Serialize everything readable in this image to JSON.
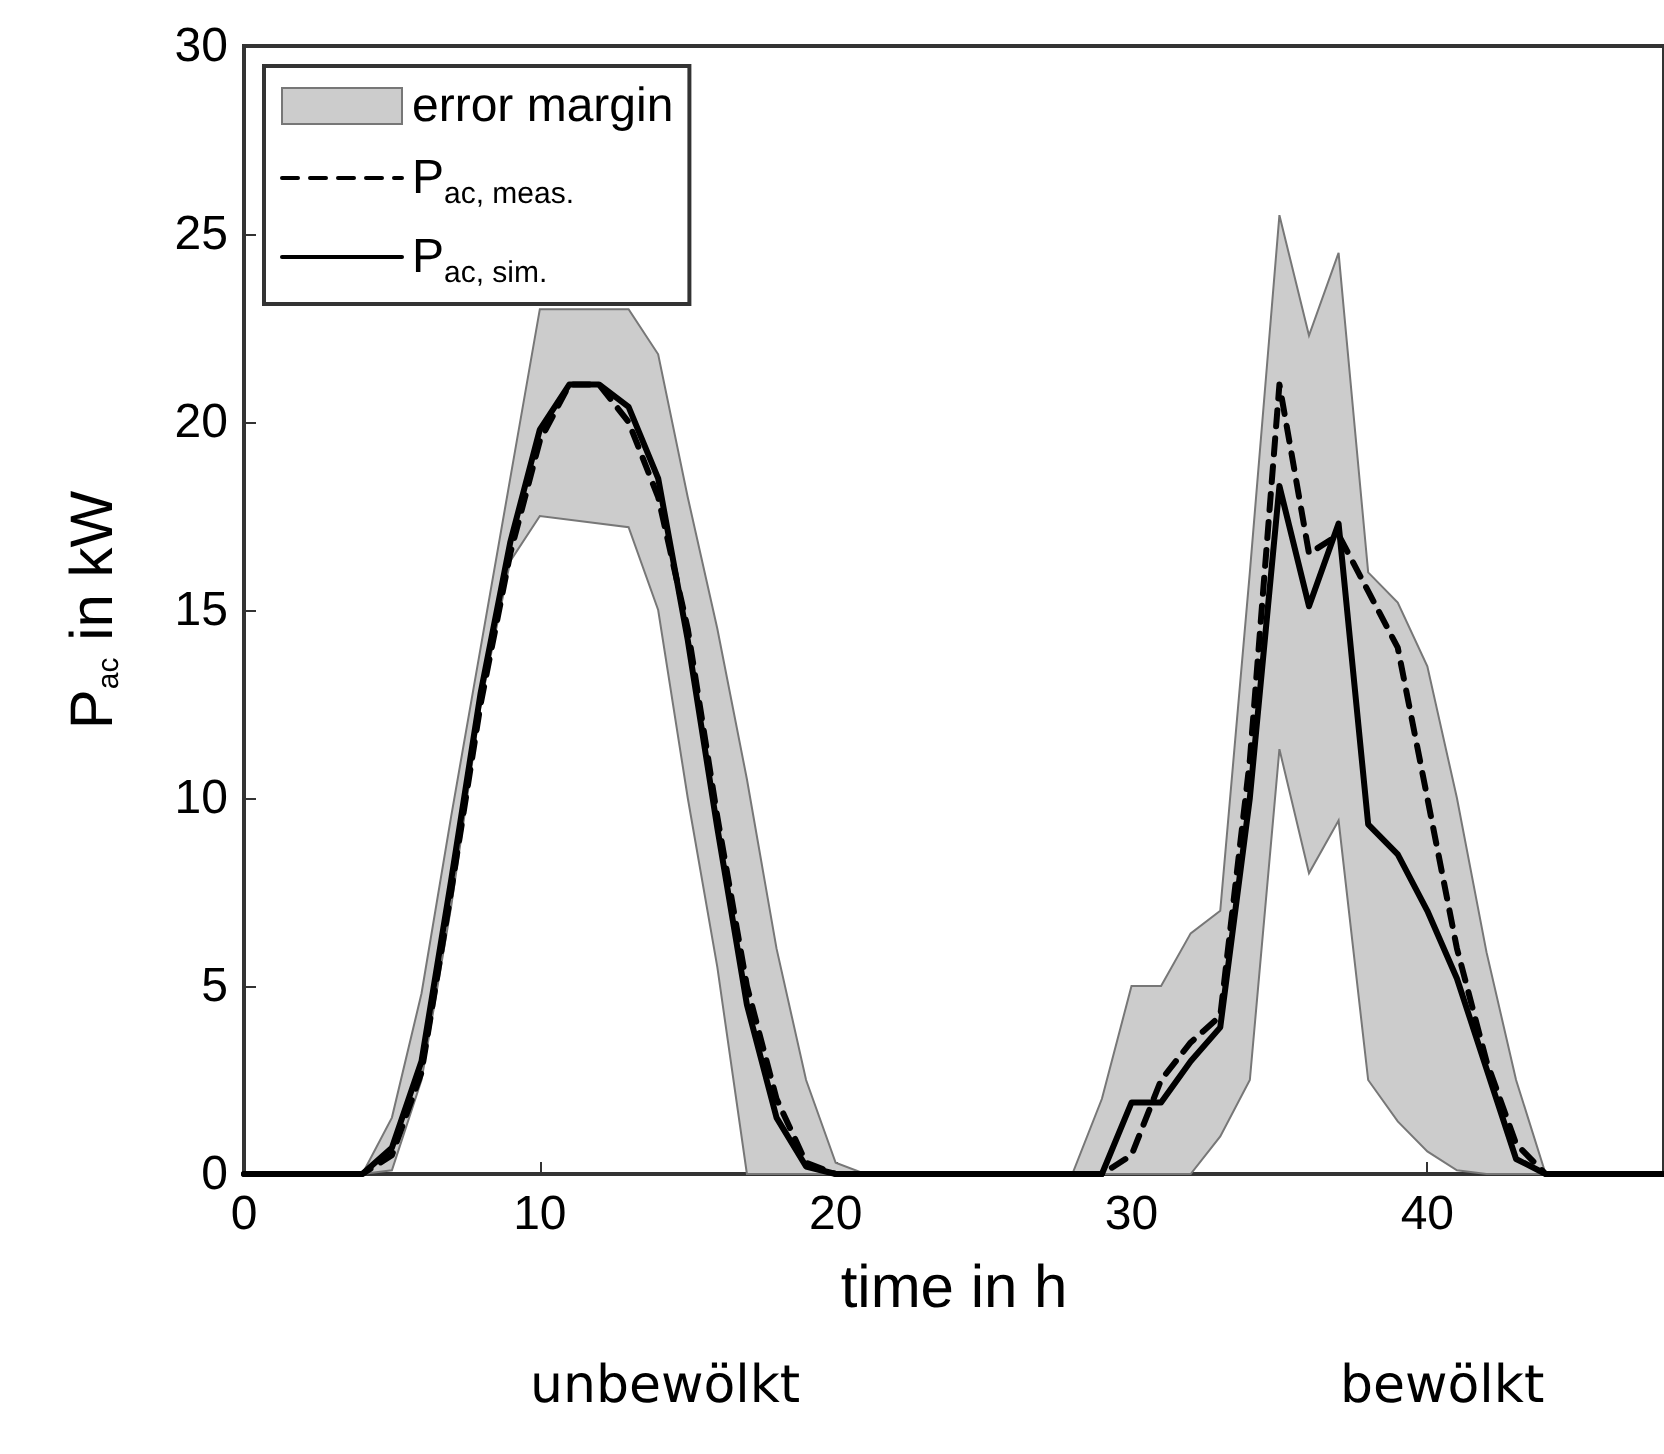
{
  "chart_data": {
    "type": "line",
    "xlabel": "time in h",
    "ylabel": "P$_{ac}$ in kW",
    "x": [
      0,
      1,
      2,
      3,
      4,
      5,
      6,
      7,
      8,
      9,
      10,
      11,
      12,
      13,
      14,
      15,
      16,
      17,
      18,
      19,
      20,
      21,
      22,
      23,
      24,
      25,
      26,
      27,
      28,
      29,
      30,
      31,
      32,
      33,
      34,
      35,
      36,
      37,
      38,
      39,
      40,
      41,
      42,
      43,
      44,
      45,
      46,
      47,
      48
    ],
    "series": [
      {
        "name": "error margin",
        "color": "#cccccc",
        "values": [
          null,
          null,
          null,
          null,
          null,
          null,
          null,
          null,
          null,
          null,
          null,
          null,
          null,
          null,
          null,
          null,
          null,
          null,
          null,
          null,
          null,
          null,
          null,
          null,
          null,
          null,
          null,
          null,
          null,
          null,
          null,
          null,
          null,
          null,
          null,
          null,
          null,
          null,
          null,
          null,
          null,
          null,
          null,
          null,
          null,
          null,
          null,
          null,
          null
        ],
        "upper": [
          0,
          0,
          0,
          0,
          0,
          1.5,
          4.8,
          9.5,
          14,
          18.5,
          23,
          null,
          null,
          23,
          21.8,
          18,
          14.5,
          10.5,
          6,
          2.5,
          0.3,
          0,
          0,
          0,
          0,
          0,
          0,
          0,
          0,
          2,
          5,
          5,
          6.4,
          7,
          16,
          25.5,
          22.3,
          24.5,
          16,
          15.2,
          13.5,
          10,
          5.9,
          2.5,
          0,
          0,
          0,
          0,
          0
        ],
        "lower": [
          0,
          0,
          0,
          0,
          0,
          0.1,
          2.5,
          7.1,
          12.5,
          16.3,
          17.5,
          null,
          null,
          17.2,
          15,
          10,
          5.5,
          0,
          0,
          0,
          0,
          0,
          0,
          0,
          0,
          0,
          0,
          0,
          0,
          0,
          0,
          0,
          0,
          1,
          2.5,
          11.3,
          8,
          9.4,
          2.5,
          1.4,
          0.6,
          0.1,
          0,
          0,
          0,
          0,
          0,
          0,
          0
        ]
      },
      {
        "name": "P$_{ac, meas.}$",
        "color": "#000000",
        "line_style": "dashed",
        "values": [
          0,
          0,
          0,
          0,
          0,
          0.5,
          2.7,
          7.5,
          12.5,
          16.5,
          19.5,
          21,
          21,
          20,
          18,
          14.5,
          9.5,
          5,
          2,
          0.3,
          0,
          0,
          0,
          0,
          0,
          0,
          0,
          0,
          0,
          0,
          0.5,
          2.5,
          3.5,
          4.2,
          11,
          21,
          16.5,
          17,
          15.5,
          14,
          10,
          6,
          3,
          0.8,
          0,
          0,
          0,
          0,
          0
        ]
      },
      {
        "name": "P$_{ac, sim.}$",
        "color": "#000000",
        "line_style": "solid",
        "values": [
          0,
          0,
          0,
          0,
          0,
          0.7,
          3,
          7.8,
          12.8,
          16.8,
          19.8,
          21,
          21,
          20.4,
          18.5,
          14.2,
          9.2,
          4.5,
          1.5,
          0.2,
          0,
          0,
          0,
          0,
          0,
          0,
          0,
          0,
          0,
          0,
          1.9,
          1.9,
          3,
          3.9,
          10,
          18.3,
          15.1,
          17.3,
          9.3,
          8.5,
          7,
          5.2,
          2.8,
          0.4,
          0,
          0,
          0,
          0,
          0
        ]
      }
    ],
    "xlim": [
      0,
      48
    ],
    "xticks": [
      0,
      10,
      20,
      30,
      40
    ],
    "ylim": [
      0,
      30
    ],
    "yticks": [
      0,
      5,
      10,
      15,
      20,
      25,
      30
    ],
    "grid": false,
    "legend": "top left",
    "marker": "none",
    "annotations": [
      "unbewölkt",
      "bewölkt"
    ]
  }
}
